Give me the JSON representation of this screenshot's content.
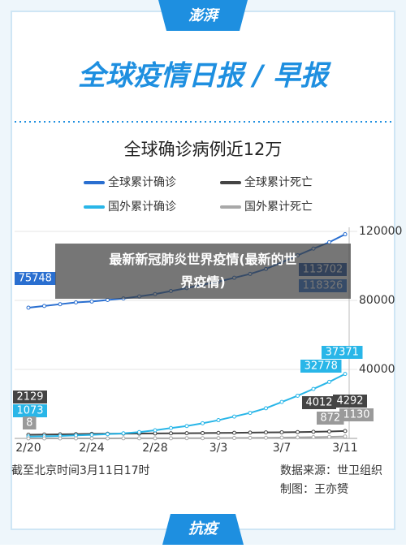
{
  "header": {
    "logo": "澎湃",
    "title": "全球疫情日报 / 早报"
  },
  "chart_data": {
    "type": "line",
    "title": "全球确诊病例近12万",
    "categories": [
      "2/20",
      null,
      null,
      null,
      "2/24",
      null,
      null,
      null,
      "2/28",
      null,
      null,
      null,
      "3/3",
      null,
      null,
      null,
      "3/7",
      null,
      null,
      null,
      "3/11"
    ],
    "series": [
      {
        "name": "全球累计确诊",
        "color": "#2a6fd0",
        "values": [
          75748,
          76769,
          77794,
          78811,
          79331,
          80239,
          81109,
          82294,
          83652,
          85403,
          87137,
          89082,
          90870,
          93091,
          95324,
          98192,
          102050,
          106099,
          109991,
          113702,
          118326
        ]
      },
      {
        "name": "全球累计死亡",
        "color": "#444444",
        "values": [
          2129,
          2247,
          2360,
          2462,
          2618,
          2699,
          2763,
          2800,
          2858,
          2924,
          2979,
          3085,
          3160,
          3254,
          3348,
          3460,
          3558,
          3653,
          3803,
          4012,
          4292
        ]
      },
      {
        "name": "国外累计确诊",
        "color": "#29b6e8",
        "values": [
          1073,
          1200,
          1402,
          1769,
          2069,
          2459,
          2918,
          3664,
          4691,
          6009,
          7169,
          8774,
          10566,
          12668,
          14788,
          17481,
          21110,
          24727,
          28673,
          32778,
          37371
        ]
      },
      {
        "name": "国外累计死亡",
        "color": "#a8a8a8",
        "values": [
          8,
          11,
          13,
          16,
          23,
          27,
          44,
          57,
          67,
          84,
          104,
          128,
          162,
          214,
          281,
          345,
          445,
          584,
          722,
          872,
          1130
        ]
      }
    ],
    "ylim": [
      0,
      120000
    ],
    "yticks": [
      40000,
      80000,
      120000
    ],
    "grid": true
  },
  "overlay": {
    "caption": "最新新冠肺炎世界疫情(最新的世界疫情)"
  },
  "footer": {
    "time": "截至北京时间3月11日17时",
    "source": "数据来源：世卫组织",
    "author": "制图：王亦赟",
    "tag": "抗疫"
  }
}
